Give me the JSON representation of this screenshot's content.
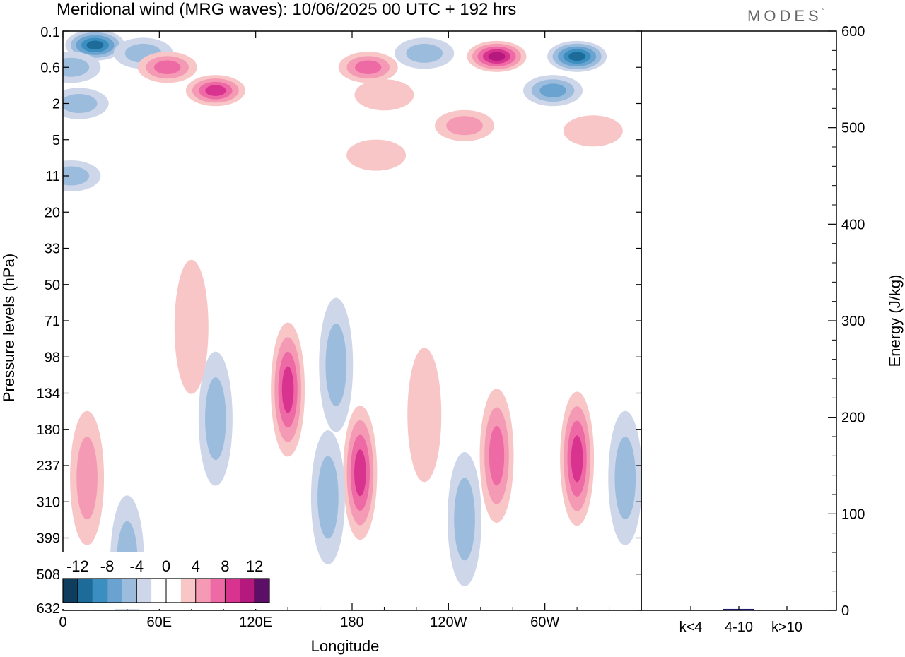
{
  "title": "Meridional wind (MRG waves):  10/06/2025  00 UTC  + 192 hrs",
  "brand": "MODES",
  "brand_mark": "°",
  "chart_data": [
    {
      "type": "heatmap",
      "xlabel": "Longitude",
      "ylabel": "Pressure levels (hPa)",
      "x_ticks": [
        "0",
        "60E",
        "120E",
        "180",
        "120W",
        "60W"
      ],
      "x_tick_values": [
        0,
        60,
        120,
        180,
        240,
        300
      ],
      "xlim": [
        0,
        360
      ],
      "y_ticks": [
        "0.1",
        "0.6",
        "2",
        "5",
        "11",
        "20",
        "33",
        "50",
        "71",
        "98",
        "134",
        "180",
        "237",
        "310",
        "399",
        "508",
        "632"
      ],
      "colorbar": {
        "labels": [
          "-12",
          "-8",
          "-4",
          "0",
          "4",
          "8",
          "12"
        ],
        "colors": [
          "#0e3d5e",
          "#1d6b99",
          "#3a8fc0",
          "#6aa3cf",
          "#9bbcdd",
          "#ced6ea",
          "#ffffff",
          "#ffffff",
          "#f8c6c6",
          "#f59ab5",
          "#ee6aa5",
          "#d8338f",
          "#b5197e",
          "#5c0f66"
        ]
      },
      "features": [
        {
          "lon": 20,
          "p": 0.2,
          "v": -12
        },
        {
          "lon": 50,
          "p": 0.3,
          "v": -6
        },
        {
          "lon": 5,
          "p": 0.6,
          "v": -6
        },
        {
          "lon": 10,
          "p": 2,
          "v": -6
        },
        {
          "lon": 5,
          "p": 11,
          "v": -6
        },
        {
          "lon": 65,
          "p": 0.6,
          "v": 8
        },
        {
          "lon": 95,
          "p": 1.3,
          "v": 10
        },
        {
          "lon": 190,
          "p": 0.6,
          "v": 8
        },
        {
          "lon": 200,
          "p": 1.5,
          "v": 5
        },
        {
          "lon": 195,
          "p": 7,
          "v": 5
        },
        {
          "lon": 225,
          "p": 0.3,
          "v": -6
        },
        {
          "lon": 270,
          "p": 0.35,
          "v": 12
        },
        {
          "lon": 320,
          "p": 0.35,
          "v": -12
        },
        {
          "lon": 305,
          "p": 1.3,
          "v": -8
        },
        {
          "lon": 250,
          "p": 3.5,
          "v": 6
        },
        {
          "lon": 330,
          "p": 4,
          "v": 5
        },
        {
          "lon": 170,
          "p": 105,
          "v": -6
        },
        {
          "lon": 140,
          "p": 130,
          "v": 10
        },
        {
          "lon": 95,
          "p": 165,
          "v": -6
        },
        {
          "lon": 185,
          "p": 250,
          "v": 10
        },
        {
          "lon": 165,
          "p": 300,
          "v": -6
        },
        {
          "lon": 40,
          "p": 470,
          "v": -6
        },
        {
          "lon": 15,
          "p": 260,
          "v": 6
        },
        {
          "lon": 270,
          "p": 220,
          "v": 8
        },
        {
          "lon": 250,
          "p": 350,
          "v": -6
        },
        {
          "lon": 320,
          "p": 225,
          "v": 10
        },
        {
          "lon": 350,
          "p": 260,
          "v": -6
        },
        {
          "lon": 225,
          "p": 160,
          "v": 5
        },
        {
          "lon": 80,
          "p": 75,
          "v": 5
        }
      ]
    },
    {
      "type": "bar",
      "categories": [
        "k<4",
        "4-10",
        "k>10"
      ],
      "values": [
        0.5,
        1.5,
        0.3
      ],
      "ylabel": "Energy (J/kg)",
      "ylim": [
        0,
        600
      ],
      "y_ticks": [
        "0",
        "100",
        "200",
        "300",
        "400",
        "500",
        "600"
      ],
      "colors": {
        "bar": "#1a1a6e"
      }
    }
  ]
}
